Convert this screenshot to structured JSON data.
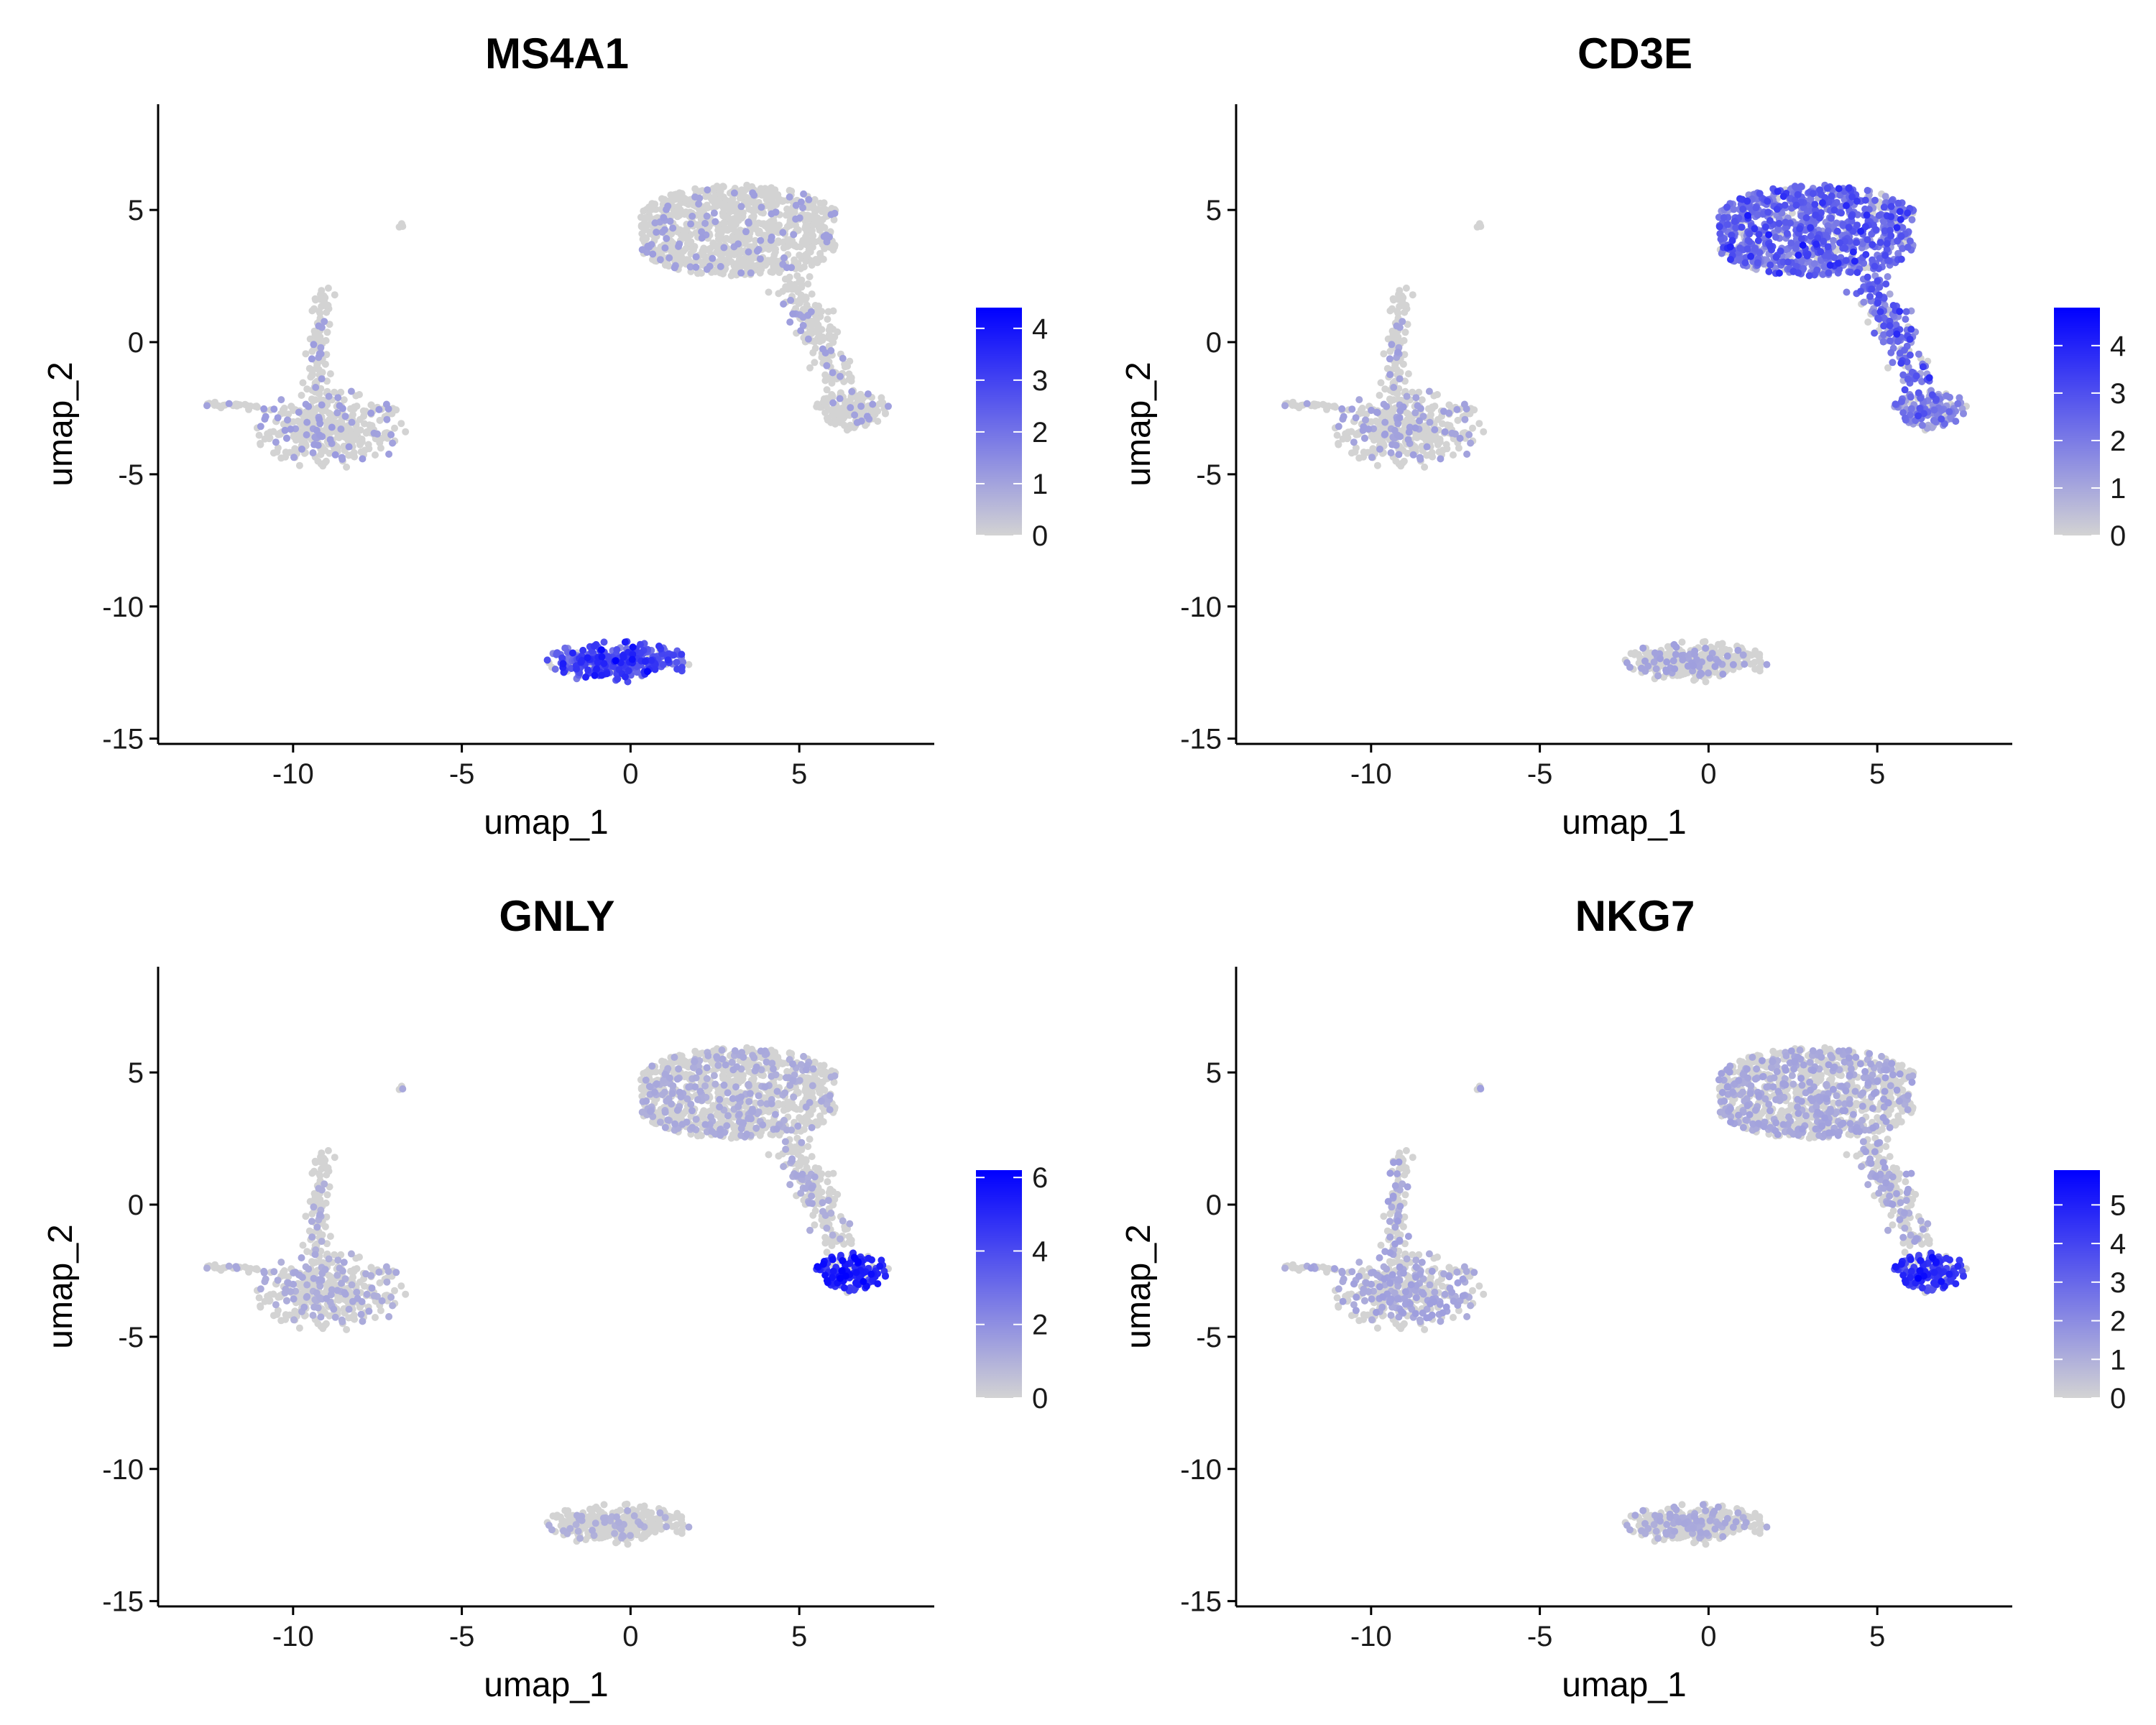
{
  "chart_data": [
    {
      "type": "scatter",
      "title": "MS4A1",
      "xlabel": "umap_1",
      "ylabel": "umap_2",
      "xlim": [
        -14,
        9
      ],
      "ylim": [
        -15.2,
        9
      ],
      "xticks": [
        -10,
        -5,
        0,
        5
      ],
      "yticks": [
        -15,
        -10,
        -5,
        0,
        5
      ],
      "color_scale": {
        "low": "#d3d3d3",
        "high": "#0000ff",
        "min": 0,
        "max": 4.4,
        "ticks": [
          0,
          1,
          2,
          3,
          4
        ]
      },
      "expression": {
        "bcell": [
          2.6,
          3.2
        ],
        "tcell": [
          0,
          0.1
        ],
        "nk": [
          0,
          0.1
        ],
        "mono": [
          0,
          0.15
        ]
      }
    },
    {
      "type": "scatter",
      "title": "CD3E",
      "xlabel": "umap_1",
      "ylabel": "umap_2",
      "xlim": [
        -14,
        9
      ],
      "ylim": [
        -15.2,
        9
      ],
      "xticks": [
        -10,
        -5,
        0,
        5
      ],
      "yticks": [
        -15,
        -10,
        -5,
        0,
        5
      ],
      "color_scale": {
        "low": "#d3d3d3",
        "high": "#0000ff",
        "min": 0,
        "max": 4.8,
        "ticks": [
          0,
          1,
          2,
          3,
          4
        ]
      },
      "expression": {
        "bcell": [
          0,
          0.15
        ],
        "tcell": [
          2.2,
          0.8
        ],
        "nk": [
          1.6,
          0.5
        ],
        "mono": [
          0,
          0.2
        ]
      }
    },
    {
      "type": "scatter",
      "title": "GNLY",
      "xlabel": "umap_1",
      "ylabel": "umap_2",
      "xlim": [
        -14,
        9
      ],
      "ylim": [
        -15.2,
        9
      ],
      "xticks": [
        -10,
        -5,
        0,
        5
      ],
      "yticks": [
        -15,
        -10,
        -5,
        0,
        5
      ],
      "color_scale": {
        "low": "#d3d3d3",
        "high": "#0000ff",
        "min": 0,
        "max": 6.2,
        "ticks": [
          0,
          2,
          4,
          6
        ]
      },
      "expression": {
        "bcell": [
          0,
          0.1
        ],
        "tcell": [
          0,
          0.25
        ],
        "nk": [
          5.0,
          0.5
        ],
        "mono": [
          0,
          0.25
        ]
      }
    },
    {
      "type": "scatter",
      "title": "NKG7",
      "xlabel": "umap_1",
      "ylabel": "umap_2",
      "xlim": [
        -14,
        9
      ],
      "ylim": [
        -15.2,
        9
      ],
      "xticks": [
        -10,
        -5,
        0,
        5
      ],
      "yticks": [
        -15,
        -10,
        -5,
        0,
        5
      ],
      "color_scale": {
        "low": "#d3d3d3",
        "high": "#0000ff",
        "min": 0,
        "max": 5.9,
        "ticks": [
          0,
          1,
          2,
          3,
          4,
          5
        ]
      },
      "expression": {
        "bcell": [
          0,
          0.2
        ],
        "tcell": [
          0,
          0.35
        ],
        "nk": [
          4.2,
          0.5
        ],
        "mono": [
          0,
          0.4
        ]
      }
    }
  ],
  "clusters": {
    "tcell_main": {
      "center": [
        3.2,
        4.2
      ],
      "spread": [
        2.0,
        1.4
      ],
      "n": 900
    },
    "tcell_tail": {
      "from": [
        4.8,
        2.5
      ],
      "to": [
        6.2,
        -1.5
      ],
      "width": 0.6,
      "n": 160
    },
    "nk": {
      "center": [
        6.6,
        -2.6
      ],
      "spread": [
        0.55,
        0.4
      ],
      "n": 140
    },
    "mono_body": {
      "center": [
        -8.9,
        -3.3
      ],
      "spread": [
        1.1,
        0.75
      ],
      "n": 380
    },
    "mono_arm": {
      "from": [
        -9.1,
        2.0
      ],
      "to": [
        -9.3,
        -2.0
      ],
      "width": 0.35,
      "n": 90
    },
    "mono_tail": {
      "from": [
        -12.8,
        -2.3
      ],
      "to": [
        -10.8,
        -2.5
      ],
      "width": 0.12,
      "n": 25
    },
    "bcell": {
      "center": [
        -0.4,
        -12.1
      ],
      "spread": [
        1.05,
        0.38
      ],
      "n": 330
    },
    "stray": {
      "center": [
        -6.8,
        4.4
      ],
      "spread": [
        0.05,
        0.05
      ],
      "n": 4
    }
  }
}
